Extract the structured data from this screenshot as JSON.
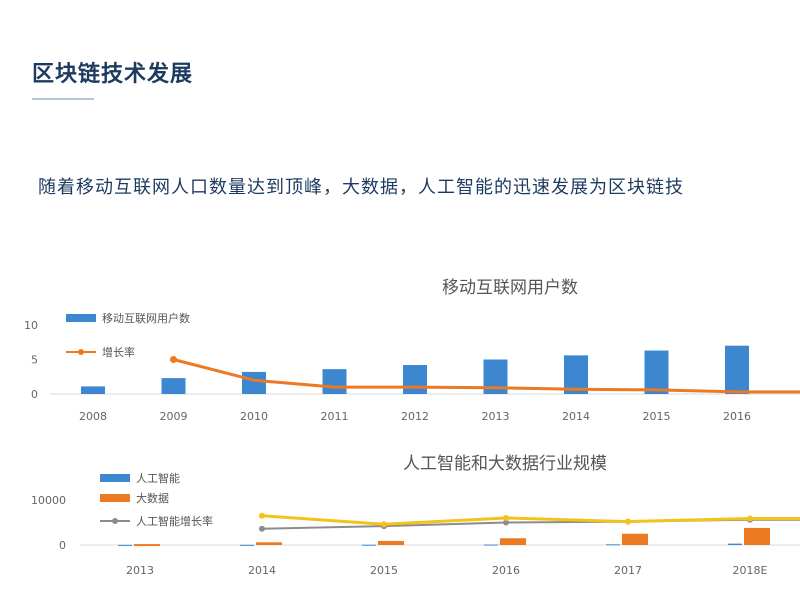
{
  "page": {
    "title": "区块链技术发展",
    "intro": "随着移动互联网人口数量达到顶峰，大数据，人工智能的迅速发展为区块链技"
  },
  "colors": {
    "title": "#1d3a5f",
    "blue": "#3d87d1",
    "orange": "#ec7a22",
    "yellow": "#f2c318",
    "gray": "#8c8c8c"
  },
  "chart_data": [
    {
      "type": "bar",
      "title": "移动互联网用户数",
      "categories": [
        "2008",
        "2009",
        "2010",
        "2011",
        "2012",
        "2013",
        "2014",
        "2015",
        "2016"
      ],
      "series": [
        {
          "name": "移动互联网用户数",
          "type": "bar",
          "values": [
            1.1,
            2.3,
            3.2,
            3.6,
            4.2,
            5.0,
            5.6,
            6.3,
            7.0
          ]
        },
        {
          "name": "增长率",
          "type": "line",
          "values": [
            null,
            5.0,
            2.0,
            1.0,
            1.0,
            0.9,
            0.7,
            0.6,
            0.3
          ]
        }
      ],
      "yticks": [
        "0",
        "5",
        "10"
      ],
      "ylim": [
        0,
        10
      ],
      "legend": "top-left"
    },
    {
      "type": "bar",
      "title": "人工智能和大数据行业规模",
      "categories": [
        "2013",
        "2014",
        "2015",
        "2016",
        "2017",
        "2018E"
      ],
      "series": [
        {
          "name": "人工智能",
          "type": "bar",
          "values": [
            20,
            30,
            60,
            100,
            150,
            300
          ]
        },
        {
          "name": "大数据",
          "type": "bar",
          "values": [
            200,
            600,
            900,
            1500,
            2500,
            3800
          ]
        },
        {
          "name": "人工智能增长率",
          "type": "line",
          "values": [
            null,
            3600,
            4200,
            5000,
            5200,
            5600
          ]
        },
        {
          "name": "",
          "type": "line",
          "values": [
            null,
            6500,
            4600,
            6000,
            5200,
            5900
          ]
        }
      ],
      "yticks": [
        "0",
        "10000"
      ],
      "ylim": [
        0,
        10000
      ],
      "legend": "top-left"
    }
  ]
}
